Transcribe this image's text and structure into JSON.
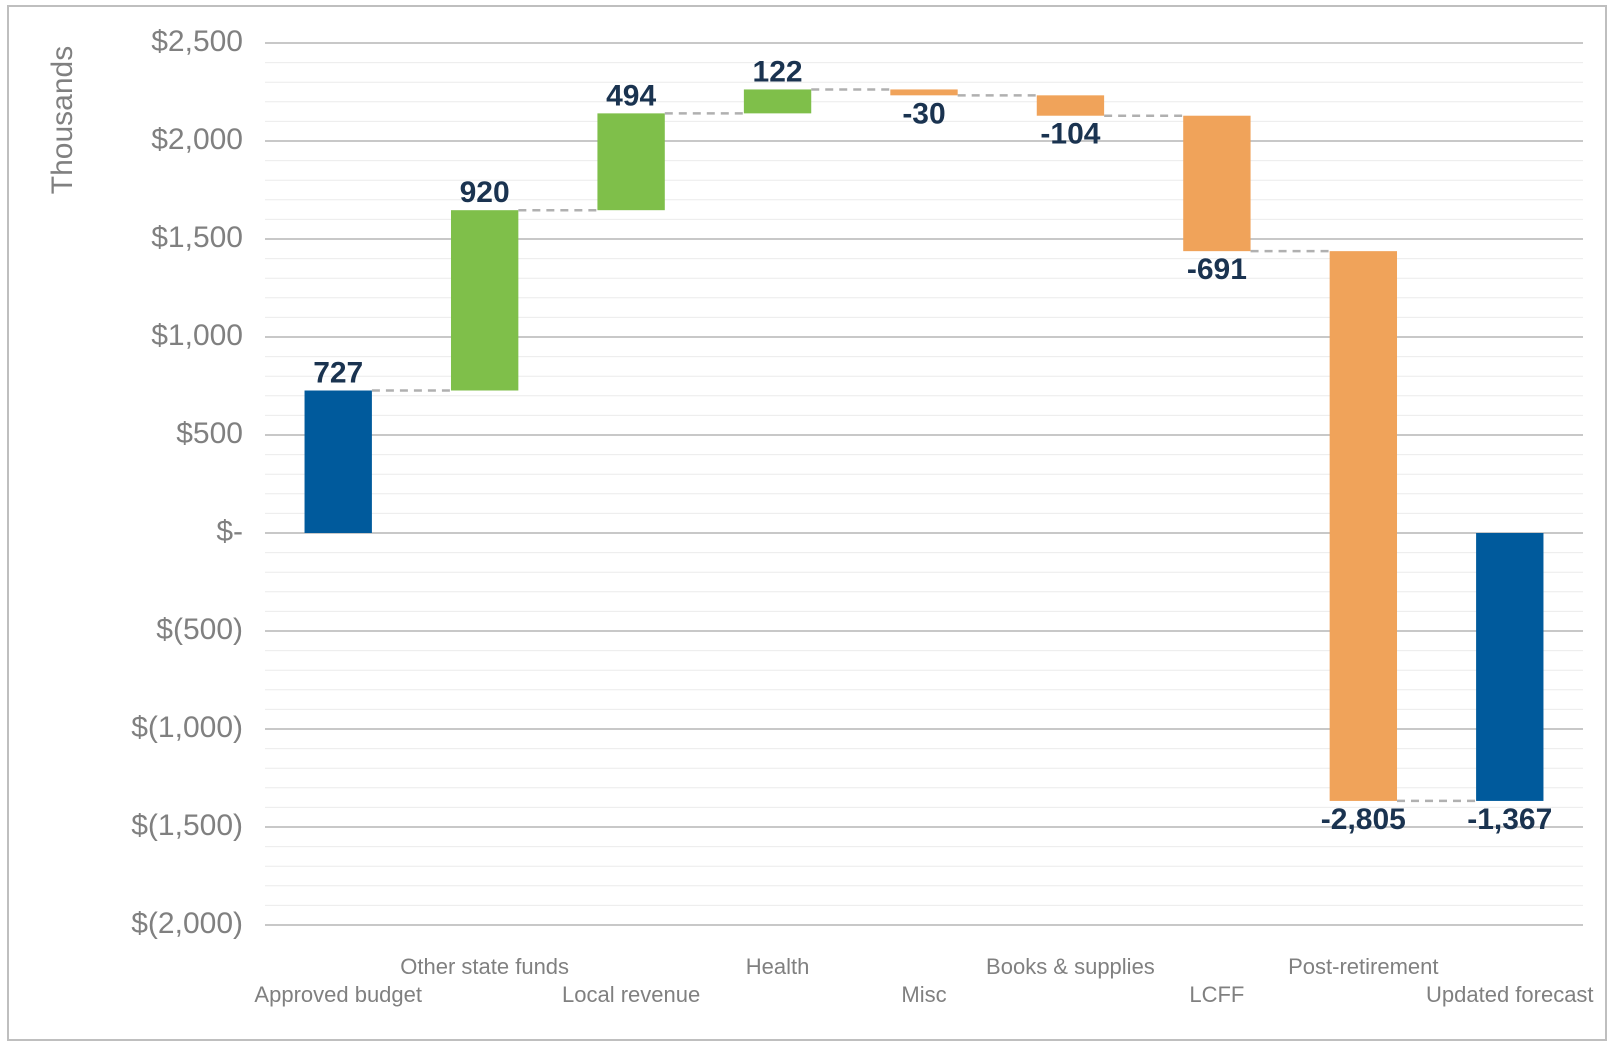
{
  "chart_data": {
    "type": "waterfall",
    "y_axis_label": "Thousands",
    "categories": [
      "Approved budget",
      "Other state funds",
      "Local revenue",
      "Health",
      "Misc",
      "Books & supplies",
      "LCFF",
      "Post-retirement",
      "Updated forecast"
    ],
    "values": [
      727,
      920,
      494,
      122,
      -30,
      -104,
      -691,
      -2805,
      -1367
    ],
    "value_labels": [
      "727",
      "920",
      "494",
      "122",
      "-30",
      "-104",
      "-691",
      "-2,805",
      "-1,367"
    ],
    "totals": [
      0,
      8
    ],
    "colors": {
      "total": "#005a9c",
      "increase": "#7fbf4a",
      "decrease": "#f0a35a"
    },
    "ylim": [
      -2000,
      2500
    ],
    "yticks": [
      {
        "value": -2000,
        "label": "$(2,000)"
      },
      {
        "value": -1500,
        "label": "$(1,500)"
      },
      {
        "value": -1000,
        "label": "$(1,000)"
      },
      {
        "value": -500,
        "label": "$(500)"
      },
      {
        "value": 0,
        "label": "$-"
      },
      {
        "value": 500,
        "label": "$500"
      },
      {
        "value": 1000,
        "label": "$1,000"
      },
      {
        "value": 1500,
        "label": "$1,500"
      },
      {
        "value": 2000,
        "label": "$2,000"
      },
      {
        "value": 2500,
        "label": "$2,500"
      }
    ],
    "grid": true,
    "minor_grid_step": 100
  }
}
